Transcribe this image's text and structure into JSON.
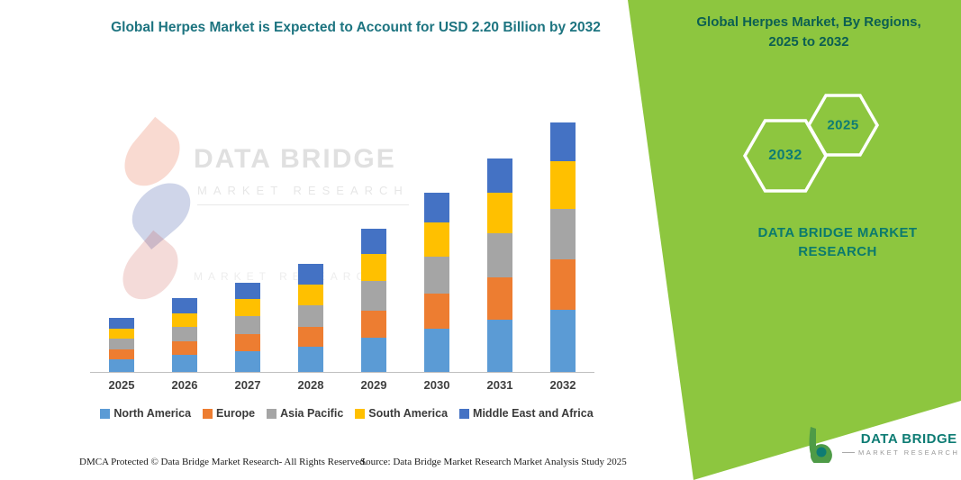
{
  "colors": {
    "panel_green": "#8DC63F",
    "left_title_teal": "#1D7480",
    "right_title_teal": "#0C5F52",
    "hex_text_teal": "#0E7C74",
    "brand_teal": "#0B7A6D",
    "axis_gray": "#BFBFBF"
  },
  "chart_data": {
    "type": "bar",
    "stacked": true,
    "title": "Global Herpes Market is Expected to Account for USD 2.20 Billion by 2032",
    "xlabel": "",
    "ylabel": "",
    "unit": "USD Billion",
    "grid": false,
    "legend_position": "bottom",
    "ylim": [
      0,
      2.4
    ],
    "categories": [
      "2025",
      "2026",
      "2027",
      "2028",
      "2029",
      "2030",
      "2031",
      "2032"
    ],
    "series": [
      {
        "name": "North America",
        "color": "#5B9BD5",
        "values": [
          0.11,
          0.15,
          0.18,
          0.22,
          0.3,
          0.38,
          0.46,
          0.55
        ]
      },
      {
        "name": "Europe",
        "color": "#ED7D31",
        "values": [
          0.09,
          0.12,
          0.15,
          0.18,
          0.24,
          0.31,
          0.37,
          0.44
        ]
      },
      {
        "name": "Asia Pacific",
        "color": "#A5A5A5",
        "values": [
          0.09,
          0.13,
          0.16,
          0.19,
          0.26,
          0.33,
          0.39,
          0.45
        ]
      },
      {
        "name": "South America",
        "color": "#FFC000",
        "values": [
          0.09,
          0.12,
          0.15,
          0.18,
          0.24,
          0.3,
          0.36,
          0.42
        ]
      },
      {
        "name": "Middle East and Africa",
        "color": "#4472C4",
        "values": [
          0.1,
          0.13,
          0.15,
          0.18,
          0.22,
          0.26,
          0.3,
          0.34
        ]
      }
    ],
    "totals": [
      0.48,
      0.65,
      0.79,
      0.95,
      1.26,
      1.58,
      1.88,
      2.2
    ]
  },
  "right_panel": {
    "title": "Global Herpes Market, By Regions, 2025 to 2032",
    "hexagons": [
      {
        "label": "2032"
      },
      {
        "label": "2025"
      }
    ],
    "brand": "DATA BRIDGE MARKET RESEARCH"
  },
  "watermark": {
    "title": "DATA BRIDGE",
    "subtitle": "MARKET RESEARCH",
    "subtitle2": "MARKET RESEARCH"
  },
  "footer": {
    "left": "DMCA Protected © Data Bridge Market Research-  All Rights Reserved.",
    "source": "Source: Data Bridge Market Research  Market Analysis Study 2025"
  },
  "logo": {
    "name": "DATA BRIDGE",
    "sub": "MARKET RESEARCH"
  }
}
